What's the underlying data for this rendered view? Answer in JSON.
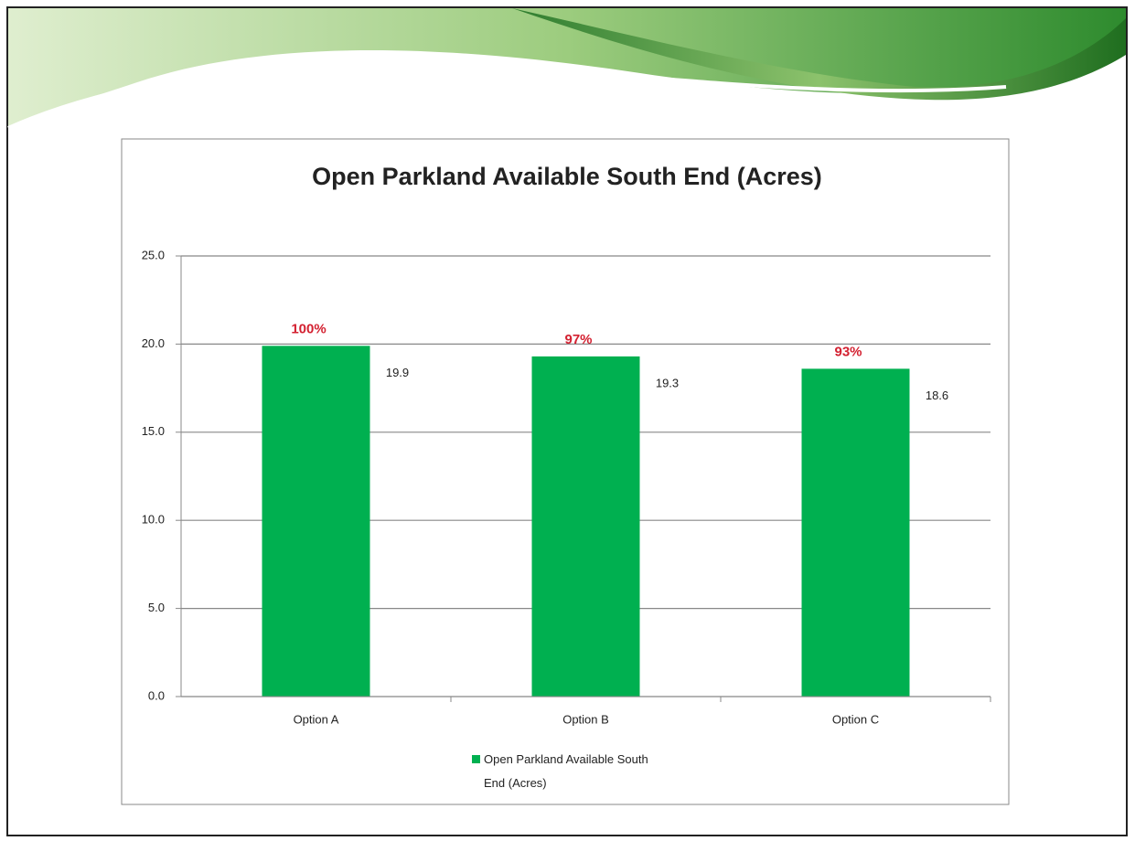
{
  "chart_data": {
    "type": "bar",
    "title": "Open Parkland Available South End (Acres)",
    "categories": [
      "Option A",
      "Option B",
      "Option C"
    ],
    "series": [
      {
        "name": "Open Parkland Available South End (Acres)",
        "color": "#00b050",
        "values": [
          19.9,
          19.3,
          18.6
        ]
      }
    ],
    "annotations": [
      "100%",
      "97%",
      "93%"
    ],
    "ylim": [
      0,
      25
    ],
    "yticks": [
      {
        "value": 0,
        "label": "0.0"
      },
      {
        "value": 5,
        "label": "5.0"
      },
      {
        "value": 10,
        "label": "10.0"
      },
      {
        "value": 15,
        "label": "15.0"
      },
      {
        "value": 20,
        "label": "20.0"
      },
      {
        "value": 25,
        "label": "25.0"
      }
    ],
    "grid": true
  }
}
